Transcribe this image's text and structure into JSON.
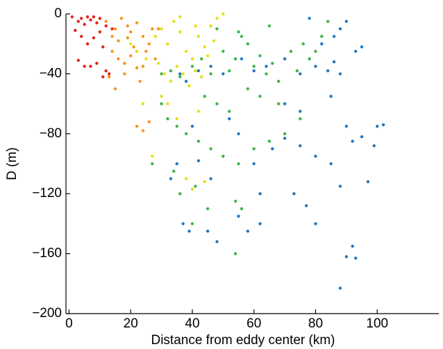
{
  "chart_data": {
    "type": "scatter",
    "x_label": "Distance from eddy center (km)",
    "y_label": "D (m)",
    "xlim": [
      -1,
      120
    ],
    "ylim": [
      -200,
      0
    ],
    "xticks": [
      0,
      20,
      40,
      60,
      80,
      100
    ],
    "yticks": [
      0,
      {
        "value": -40,
        "label": "−40"
      },
      {
        "value": -80,
        "label": "−80"
      },
      {
        "value": -120,
        "label": "−120"
      },
      {
        "value": -160,
        "label": "−160"
      },
      {
        "value": -200,
        "label": "−200"
      }
    ],
    "series": [
      {
        "color": "#e2231a",
        "x": [
          1,
          2,
          3,
          4,
          5,
          6,
          7,
          8,
          9,
          10,
          3,
          5,
          7,
          9,
          11,
          12,
          13,
          6,
          8,
          10,
          12,
          4,
          11,
          14
        ],
        "values": [
          -2,
          -11,
          -5,
          -3,
          -7,
          -2,
          -4,
          -2,
          -6,
          -3,
          -31,
          -35,
          -35,
          -33,
          -42,
          -38,
          -40,
          -20,
          -16,
          -12,
          -8,
          -15,
          -22,
          -10
        ]
      },
      {
        "color": "#f7941d",
        "x": [
          12,
          15,
          17,
          19,
          20,
          22,
          24,
          26,
          14,
          16,
          18,
          20,
          22,
          13,
          18,
          25,
          28,
          16,
          21,
          23,
          19,
          27,
          24,
          14,
          15,
          22,
          24,
          26,
          29
        ],
        "values": [
          -5,
          -10,
          -3,
          -8,
          -12,
          -6,
          -15,
          -20,
          -25,
          -30,
          -33,
          -28,
          -36,
          -42,
          -40,
          -25,
          -30,
          -18,
          -22,
          -45,
          -16,
          -10,
          -35,
          -15,
          -50,
          -75,
          -78,
          -72,
          -10
        ]
      },
      {
        "color": "#e6df12",
        "x": [
          20,
          22,
          25,
          28,
          30,
          32,
          34,
          36,
          38,
          40,
          42,
          44,
          46,
          48,
          50,
          35,
          37,
          33,
          31,
          39,
          41,
          43,
          45,
          47,
          30,
          32,
          42,
          38,
          40,
          44,
          27,
          35,
          24,
          29,
          36,
          41
        ],
        "values": [
          -20,
          -25,
          -30,
          -15,
          -10,
          -20,
          -5,
          -12,
          -25,
          -30,
          -15,
          -22,
          -8,
          -3,
          0,
          -35,
          -40,
          -45,
          -40,
          -48,
          -38,
          -42,
          -28,
          -18,
          -55,
          -60,
          -65,
          -110,
          -117,
          -112,
          -95,
          -70,
          -60,
          -33,
          -2,
          -8
        ]
      },
      {
        "color": "#3db54a",
        "x": [
          30,
          33,
          36,
          40,
          43,
          46,
          50,
          52,
          54,
          56,
          58,
          60,
          62,
          64,
          66,
          68,
          70,
          72,
          74,
          76,
          78,
          80,
          82,
          84,
          48,
          55,
          65,
          30,
          32,
          35,
          38,
          42,
          46,
          50,
          55,
          60,
          65,
          70,
          75,
          27,
          34,
          41,
          54,
          56,
          54,
          44,
          48,
          52,
          58,
          62,
          68,
          45,
          40,
          36
        ],
        "values": [
          -40,
          -38,
          -42,
          -35,
          -30,
          -40,
          -25,
          -38,
          -30,
          -15,
          -20,
          -35,
          -28,
          -40,
          -33,
          -45,
          -30,
          -25,
          -38,
          -20,
          -30,
          -25,
          -15,
          -5,
          -10,
          -12,
          -8,
          -60,
          -70,
          -75,
          -80,
          -85,
          -90,
          -95,
          -100,
          -90,
          -85,
          -80,
          -70,
          -100,
          -105,
          -115,
          -125,
          -130,
          -160,
          -55,
          -60,
          -65,
          -50,
          -55,
          -60,
          -130,
          -140,
          -120
        ]
      },
      {
        "color": "#1f78c1",
        "x": [
          36,
          38,
          42,
          46,
          50,
          56,
          60,
          64,
          70,
          75,
          80,
          84,
          86,
          88,
          82,
          86,
          88,
          90,
          78,
          93,
          95,
          33,
          35,
          37,
          39,
          45,
          48,
          55,
          58,
          62,
          73,
          77,
          80,
          88,
          90,
          92,
          93,
          97,
          99,
          100,
          102,
          92,
          90,
          95,
          85,
          80,
          75,
          70,
          66,
          60,
          55,
          46,
          42,
          40,
          62,
          88,
          52,
          70,
          75,
          85
        ],
        "values": [
          -40,
          -45,
          -38,
          -35,
          -40,
          -30,
          -38,
          -35,
          -30,
          -40,
          -35,
          -38,
          -32,
          -40,
          -20,
          -15,
          -10,
          -5,
          -3,
          -25,
          -22,
          -110,
          -100,
          -140,
          -145,
          -145,
          -152,
          -135,
          -145,
          -140,
          -120,
          -128,
          -140,
          -183,
          -162,
          -155,
          -163,
          -112,
          -88,
          -75,
          -74,
          -85,
          -75,
          -82,
          -100,
          -95,
          -88,
          -83,
          -90,
          -100,
          -80,
          -110,
          -98,
          -75,
          -120,
          -115,
          -70,
          -60,
          -65,
          -55
        ]
      }
    ]
  }
}
